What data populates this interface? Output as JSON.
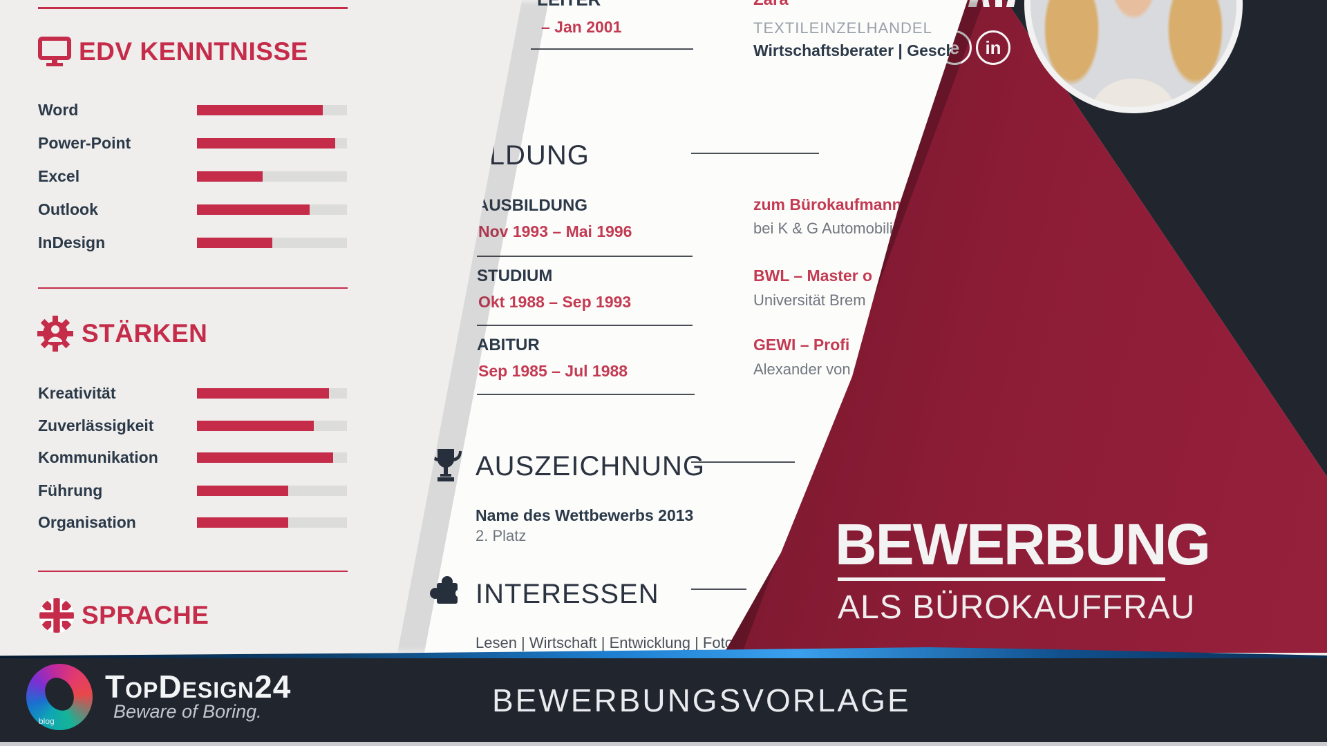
{
  "colors": {
    "accent_crimson": "#c42c4a",
    "date_red": "#c33a52",
    "navy_text": "#2b3948",
    "gray_text": "#70767e",
    "light_gray_text": "#99a0a8",
    "dark_bg": "#20252e",
    "maroon_dark": "#691528",
    "maroon_light": "#96203c",
    "blue_accent": "#3aa0ee",
    "bar_track": "#dcdcda",
    "page_white": "#fbfbfa",
    "page_gray": "#efeeec"
  },
  "left_page": {
    "edv": {
      "title": "EDV KENNTNISSE",
      "icon": "monitor-icon",
      "skills": [
        {
          "label": "Word",
          "pct": 84
        },
        {
          "label": "Power-Point",
          "pct": 92
        },
        {
          "label": "Excel",
          "pct": 44
        },
        {
          "label": "Outlook",
          "pct": 75
        },
        {
          "label": "InDesign",
          "pct": 50
        }
      ]
    },
    "staerken": {
      "title": "STÄRKEN",
      "icon": "gear-person-icon",
      "skills": [
        {
          "label": "Kreativität",
          "pct": 88
        },
        {
          "label": "Zuverlässigkeit",
          "pct": 78
        },
        {
          "label": "Kommunikation",
          "pct": 91
        },
        {
          "label": "Führung",
          "pct": 61
        },
        {
          "label": "Organisation",
          "pct": 61
        }
      ]
    },
    "sprache": {
      "title": "SPRACHE",
      "icon": "uk-flag-icon"
    }
  },
  "middle_page": {
    "experience": {
      "title_fragment": "LEITER",
      "date": "– Jan 2001",
      "company": "Zara",
      "industry": "TEXTILEINZELHANDEL",
      "role": "Wirtschaftsberater | Geschäfts"
    },
    "bildung": {
      "title": "BILDUNG",
      "entries": [
        {
          "heading": "AUSBILDUNG",
          "date": "Nov 1993 – Mai 1996",
          "right_title": "zum Bürokaufmann",
          "right_sub": "bei K & G Automobili"
        },
        {
          "heading": "STUDIUM",
          "date": "Okt 1988 – Sep 1993",
          "right_title": "BWL – Master o",
          "right_sub": "Universität Brem"
        },
        {
          "heading": "ABITUR",
          "date": "Sep 1985 – Jul 1988",
          "right_title": "GEWI – Profi",
          "right_sub": "Alexander von"
        }
      ]
    },
    "auszeichnung": {
      "title": "AUSZEICHNUNG",
      "icon": "trophy-icon",
      "award_name": "Name des Wettbewerbs 2013",
      "award_rank": "2. Platz"
    },
    "interessen": {
      "title": "INTERESSEN",
      "icon": "puzzle-icon",
      "items": "Lesen | Wirtschaft | Entwicklung | Foto"
    }
  },
  "cover": {
    "title": "BEWERBUNG",
    "subtitle": "ALS BÜROKAUFFRAU",
    "social_icons": [
      {
        "glyph": "e",
        "name": "social-e"
      },
      {
        "glyph": "in",
        "name": "linkedin"
      }
    ]
  },
  "footer": {
    "badge": "blog",
    "brand": "TopDesign24",
    "tagline": "Beware of Boring.",
    "label": "BEWERBUNGSVORLAGE"
  }
}
